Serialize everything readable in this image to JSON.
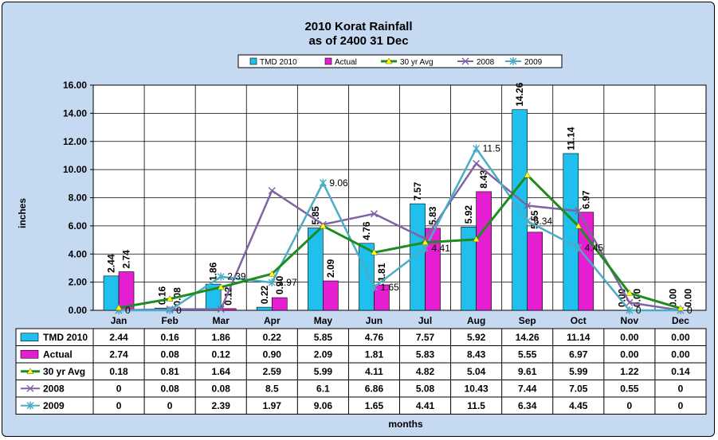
{
  "chart_data": {
    "type": "bar",
    "title": "2010 Korat Rainfall",
    "subtitle": "as of 2400 31 Dec",
    "ylabel": "inches",
    "xlabel": "months",
    "ylim": [
      0,
      16
    ],
    "yticks": [
      "0.00",
      "2.00",
      "4.00",
      "6.00",
      "8.00",
      "10.00",
      "12.00",
      "14.00",
      "16.00"
    ],
    "grid": true,
    "legend_position": "top",
    "categories": [
      "Jan",
      "Feb",
      "Mar",
      "Apr",
      "May",
      "Jun",
      "Jul",
      "Aug",
      "Sep",
      "Oct",
      "Nov",
      "Dec"
    ],
    "series": [
      {
        "name": "TMD 2010",
        "kind": "bar",
        "color": "#1fc0ee",
        "values": [
          2.44,
          0.16,
          1.86,
          0.22,
          5.85,
          4.76,
          7.57,
          5.92,
          14.26,
          11.14,
          0.0,
          0.0
        ],
        "labels": [
          "2.44",
          "0.16",
          "1.86",
          "0.22",
          "5.85",
          "4.76",
          "7.57",
          "5.92",
          "14.26",
          "11.14",
          "0.00",
          "0.00"
        ]
      },
      {
        "name": "Actual",
        "kind": "bar",
        "color": "#e61ed2",
        "values": [
          2.74,
          0.08,
          0.12,
          0.9,
          2.09,
          1.81,
          5.83,
          8.43,
          5.55,
          6.97,
          0.0,
          0.0
        ],
        "labels": [
          "2.74",
          "0.08",
          "0.12",
          "0.90",
          "2.09",
          "1.81",
          "5.83",
          "8.43",
          "5.55",
          "6.97",
          "0.00",
          "0.00"
        ]
      },
      {
        "name": "30 yr Avg",
        "kind": "line",
        "color": "#1e8c1e",
        "marker_color": "#ffff00",
        "values": [
          0.18,
          0.81,
          1.64,
          2.59,
          5.99,
          4.11,
          4.82,
          5.04,
          9.61,
          5.99,
          1.22,
          0.14
        ],
        "labels": [
          "0.18",
          "0.81",
          "1.64",
          "2.59",
          "5.99",
          "4.11",
          "4.82",
          "5.04",
          "9.61",
          "5.99",
          "1.22",
          "0.14"
        ]
      },
      {
        "name": "2008",
        "kind": "line",
        "color": "#8064a2",
        "values": [
          0,
          0.08,
          0.08,
          8.5,
          6.1,
          6.86,
          5.08,
          10.43,
          7.44,
          7.05,
          0.55,
          0
        ],
        "labels": [
          "0",
          "0.08",
          "0.08",
          "8.5",
          "6.1",
          "6.86",
          "5.08",
          "10.43",
          "7.44",
          "7.05",
          "0.55",
          "0"
        ]
      },
      {
        "name": "2009",
        "kind": "line",
        "color": "#4bacc6",
        "values": [
          0,
          0,
          2.39,
          1.97,
          9.06,
          1.65,
          4.41,
          11.5,
          6.34,
          4.45,
          0,
          0
        ],
        "labels": [
          "0",
          "0",
          "2.39",
          "1.97",
          "9.06",
          "1.65",
          "4.41",
          "11.5",
          "6.34",
          "4.45",
          "0",
          "0"
        ]
      }
    ]
  }
}
